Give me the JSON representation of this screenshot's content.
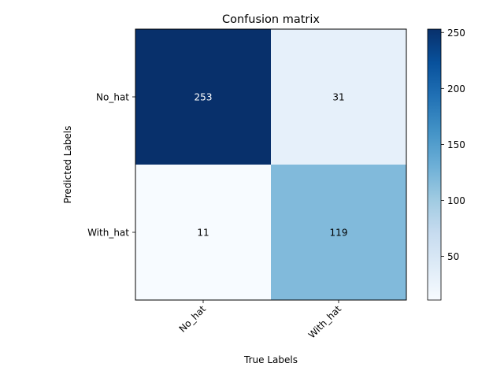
{
  "chart_data": {
    "type": "heatmap",
    "title": "Confusion matrix",
    "xlabel": "True Labels",
    "ylabel": "Predicted Labels",
    "x_categories": [
      "No_hat",
      "With_hat"
    ],
    "y_categories": [
      "No_hat",
      "With_hat"
    ],
    "values": [
      [
        253,
        31
      ],
      [
        11,
        119
      ]
    ],
    "colormap": "Blues",
    "color_range": [
      11,
      253
    ],
    "colorbar_ticks": [
      50,
      100,
      150,
      200,
      250
    ],
    "x_tick_rotation_deg": 45,
    "grid": false
  }
}
